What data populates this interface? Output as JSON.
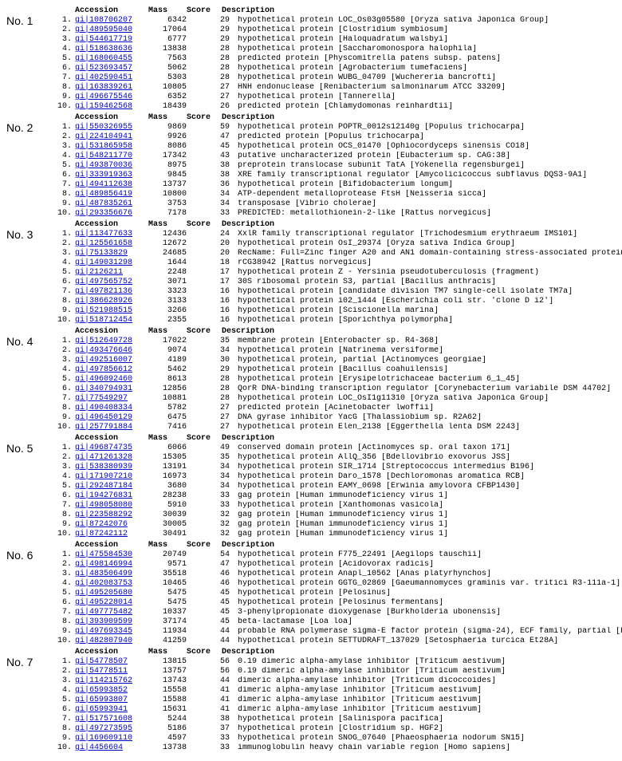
{
  "headers": {
    "accession": "Accession",
    "mass": "Mass",
    "score": "Score",
    "description": "Description"
  },
  "sections": [
    {
      "label": "No. 1",
      "rows": [
        {
          "idx": "1.",
          "acc": "gi|108706207",
          "mass": "6342",
          "score": "29",
          "desc": "hypothetical protein LOC_Os03g05580 [Oryza sativa Japonica Group]"
        },
        {
          "idx": "2.",
          "acc": "gi|489595040",
          "mass": "17064",
          "score": "29",
          "desc": "hypothetical protein [Clostridium symbiosum]"
        },
        {
          "idx": "3.",
          "acc": "gi|544617719",
          "mass": "6777",
          "score": "29",
          "desc": "hypothetical protein [Haloquadratum walsbyi]"
        },
        {
          "idx": "4.",
          "acc": "gi|518638636",
          "mass": "13838",
          "score": "28",
          "desc": "hypothetical protein [Saccharomonospora halophila]"
        },
        {
          "idx": "5.",
          "acc": "gi|168060455",
          "mass": "7563",
          "score": "28",
          "desc": "predicted protein [Physcomitrella patens subsp. patens]"
        },
        {
          "idx": "6.",
          "acc": "gi|523693457",
          "mass": "5062",
          "score": "28",
          "desc": "hypothetical protein [Agrobacterium tumefaciens]"
        },
        {
          "idx": "7.",
          "acc": "gi|402590451",
          "mass": "5303",
          "score": "28",
          "desc": "hypothetical protein WUBG_04709 [Wuchereria bancrofti]"
        },
        {
          "idx": "8.",
          "acc": "gi|163839261",
          "mass": "10805",
          "score": "27",
          "desc": "HNH endonuclease [Renibacterium salmoninarum ATCC 33209]"
        },
        {
          "idx": "9.",
          "acc": "gi|496675546",
          "mass": "6352",
          "score": "27",
          "desc": "hypothetical protein [Tannerella]"
        },
        {
          "idx": "10.",
          "acc": "gi|159462568",
          "mass": "18439",
          "score": "26",
          "desc": "predicted protein [Chlamydomonas reinhardtii]"
        }
      ]
    },
    {
      "label": "No. 2",
      "rows": [
        {
          "idx": "1.",
          "acc": "gi|550326955",
          "mass": "9869",
          "score": "59",
          "desc": "hypothetical protein POPTR_0012s12140g [Populus trichocarpa]"
        },
        {
          "idx": "2.",
          "acc": "gi|224104941",
          "mass": "9926",
          "score": "47",
          "desc": "predicted protein [Populus trichocarpa]"
        },
        {
          "idx": "3.",
          "acc": "gi|531865958",
          "mass": "8086",
          "score": "45",
          "desc": "hypothetical protein OCS_01470 [Ophiocordyceps sinensis CO18]"
        },
        {
          "idx": "4.",
          "acc": "gi|548211770",
          "mass": "17342",
          "score": "43",
          "desc": "putative uncharacterized protein [Eubacterium sp. CAG:38]"
        },
        {
          "idx": "5.",
          "acc": "gi|493870036",
          "mass": "8975",
          "score": "38",
          "desc": "preprotein translocase subunit TatA [Yokenella regensburgei]"
        },
        {
          "idx": "6.",
          "acc": "gi|333919363",
          "mass": "9845",
          "score": "38",
          "desc": "XRE family transcriptional regulator [Amycolicicoccus subflavus DQS3-9A1]"
        },
        {
          "idx": "7.",
          "acc": "gi|494112638",
          "mass": "13737",
          "score": "36",
          "desc": "hypothetical protein [Bifidobacterium longum]"
        },
        {
          "idx": "8.",
          "acc": "gi|489856419",
          "mass": "10800",
          "score": "34",
          "desc": "ATP-dependent metalloprotease FtsH [Neisseria sicca]"
        },
        {
          "idx": "9.",
          "acc": "gi|487835261",
          "mass": "3753",
          "score": "34",
          "desc": "transposase [Vibrio cholerae]"
        },
        {
          "idx": "10.",
          "acc": "gi|293356676",
          "mass": "7178",
          "score": "33",
          "desc": "PREDICTED: metallothionein-2-like [Rattus norvegicus]"
        }
      ]
    },
    {
      "label": "No. 3",
      "rows": [
        {
          "idx": "1.",
          "acc": "gi|113477633",
          "mass": "12436",
          "score": "24",
          "desc": "XxlR family transcriptional regulator [Trichodesmium erythraeum IMS101]"
        },
        {
          "idx": "2.",
          "acc": "gi|125561658",
          "mass": "12672",
          "score": "20",
          "desc": "hypothetical protein OsI_29374 [Oryza sativa Indica Group]"
        },
        {
          "idx": "3.",
          "acc": "gi|75133829",
          "mass": "24685",
          "score": "20",
          "desc": "RecName: Full=Zinc finger A20 and AN1 domain-containing stress-associated protein 12; Short=OsSAP12"
        },
        {
          "idx": "4.",
          "acc": "gi|149031298",
          "mass": "1644",
          "score": "18",
          "desc": "rCG38942 [Rattus norvegicus]"
        },
        {
          "idx": "5.",
          "acc": "gi|2126211",
          "mass": "2248",
          "score": "17",
          "desc": "hypothetical protein Z - Yersinia pseudotuberculosis (fragment)"
        },
        {
          "idx": "6.",
          "acc": "gi|497565752",
          "mass": "3071",
          "score": "17",
          "desc": "30S ribosomal protein S3, partial [Bacillus anthracis]"
        },
        {
          "idx": "7.",
          "acc": "gi|497821136",
          "mass": "3323",
          "score": "16",
          "desc": "hypothetical protein [candidate division TM7 single-cell isolate TM7a]"
        },
        {
          "idx": "8.",
          "acc": "gi|386628926",
          "mass": "3133",
          "score": "16",
          "desc": "hypothetical protein i02_1444 [Escherichia coli str. 'clone D i2']"
        },
        {
          "idx": "9.",
          "acc": "gi|521988515",
          "mass": "3266",
          "score": "16",
          "desc": "hypothetical protein [Sciscionella marina]"
        },
        {
          "idx": "10.",
          "acc": "gi|518712454",
          "mass": "2355",
          "score": "16",
          "desc": "hypothetical protein [Sporichthya polymorpha]"
        }
      ]
    },
    {
      "label": "No. 4",
      "rows": [
        {
          "idx": "1.",
          "acc": "gi|512649728",
          "mass": "17022",
          "score": "35",
          "desc": "membrane protein [Enterobacter sp. R4-368]"
        },
        {
          "idx": "2.",
          "acc": "gi|493476646",
          "mass": "9074",
          "score": "34",
          "desc": "hypothetical protein [Natrinema versiforme]"
        },
        {
          "idx": "3.",
          "acc": "gi|492516007",
          "mass": "4189",
          "score": "30",
          "desc": "hypothetical protein, partial [Actinomyces georgiae]"
        },
        {
          "idx": "4.",
          "acc": "gi|497856612",
          "mass": "5462",
          "score": "29",
          "desc": "hypothetical protein [Bacillus coahuilensis]"
        },
        {
          "idx": "5.",
          "acc": "gi|496092460",
          "mass": "8613",
          "score": "28",
          "desc": "hypothetical protein [Erysipelotrichaceae bacterium 6_1_45]"
        },
        {
          "idx": "6.",
          "acc": "gi|340794931",
          "mass": "12856",
          "score": "28",
          "desc": "QorR DNA-binding transcription regulator [Corynebacterium variabile DSM 44702]"
        },
        {
          "idx": "7.",
          "acc": "gi|77549297",
          "mass": "10881",
          "score": "28",
          "desc": "hypothetical protein LOC_OsI1g11310 [Oryza sativa Japonica Group]"
        },
        {
          "idx": "8.",
          "acc": "gi|490408334",
          "mass": "5782",
          "score": "27",
          "desc": "predicted protein [Acinetobacter lwoffii]"
        },
        {
          "idx": "9.",
          "acc": "gi|496450129",
          "mass": "6475",
          "score": "27",
          "desc": "DNA gyrase inhibitor YacG [Thalassiobium sp. R2A62]"
        },
        {
          "idx": "10.",
          "acc": "gi|257791884",
          "mass": "7416",
          "score": "27",
          "desc": "hypothetical protein Elen_2138 [Eggerthella lenta DSM 2243]"
        }
      ]
    },
    {
      "label": "No. 5",
      "rows": [
        {
          "idx": "1.",
          "acc": "gi|496874735",
          "mass": "6066",
          "score": "49",
          "desc": "conserved domain protein [Actinomyces sp. oral taxon 171]"
        },
        {
          "idx": "2.",
          "acc": "gi|471261328",
          "mass": "15305",
          "score": "35",
          "desc": "hypothetical protein AllQ_356 [Bdellovibrio exovorus JSS]"
        },
        {
          "idx": "3.",
          "acc": "gi|538380939",
          "mass": "13191",
          "score": "34",
          "desc": "hypothetical protein SIR_1714 [Streptococcus intermedius B196]"
        },
        {
          "idx": "4.",
          "acc": "gi|171907210",
          "mass": "16973",
          "score": "34",
          "desc": "hypothetical protein Daro_1578 [Dechloromonas aromatica RCB]"
        },
        {
          "idx": "5.",
          "acc": "gi|292487184",
          "mass": "3680",
          "score": "34",
          "desc": "hypothetical protein EAMY_0698 [Erwinia amylovora CFBP1430]"
        },
        {
          "idx": "6.",
          "acc": "gi|194276831",
          "mass": "28238",
          "score": "33",
          "desc": "gag protein [Human immunodeficiency virus 1]"
        },
        {
          "idx": "7.",
          "acc": "gi|498058080",
          "mass": "5910",
          "score": "33",
          "desc": "hypothetical protein [Xanthomonas vasicola]"
        },
        {
          "idx": "8.",
          "acc": "gi|223588292",
          "mass": "30039",
          "score": "32",
          "desc": "gag protein [Human immunodeficiency virus 1]"
        },
        {
          "idx": "9.",
          "acc": "gi|87242076",
          "mass": "30005",
          "score": "32",
          "desc": "gag protein [Human immunodeficiency virus 1]"
        },
        {
          "idx": "10.",
          "acc": "gi|87242112",
          "mass": "30491",
          "score": "32",
          "desc": "gag protein [Human immunodeficiency virus 1]"
        }
      ]
    },
    {
      "label": "No. 6",
      "rows": [
        {
          "idx": "1.",
          "acc": "gi|475584530",
          "mass": "20749",
          "score": "54",
          "desc": "hypothetical protein F775_22491 [Aegilops tauschii]"
        },
        {
          "idx": "2.",
          "acc": "gi|498146994",
          "mass": "9571",
          "score": "47",
          "desc": "hypothetical protein [Acidovorax radicis]"
        },
        {
          "idx": "3.",
          "acc": "gi|483506499",
          "mass": "35518",
          "score": "46",
          "desc": "hypothetical protein Anapl_10562 [Anas platyrhynchos]"
        },
        {
          "idx": "4.",
          "acc": "gi|402083753",
          "mass": "10465",
          "score": "46",
          "desc": "hypothetical protein GGTG_02869 [Gaeumannomyces graminis var. tritici R3-111a-1]"
        },
        {
          "idx": "5.",
          "acc": "gi|495205680",
          "mass": "5475",
          "score": "45",
          "desc": "hypothetical protein [Pelosinus]"
        },
        {
          "idx": "6.",
          "acc": "gi|495228014",
          "mass": "5475",
          "score": "45",
          "desc": "hypothetical protein [Pelosinus fermentans]"
        },
        {
          "idx": "7.",
          "acc": "gi|497775482",
          "mass": "10337",
          "score": "45",
          "desc": "3-phenylpropionate dioxygenase [Burkholderia ubonensis]"
        },
        {
          "idx": "8.",
          "acc": "gi|393909599",
          "mass": "37174",
          "score": "45",
          "desc": "beta-lactamase [Loa loa]"
        },
        {
          "idx": "9.",
          "acc": "gi|497693345",
          "mass": "11934",
          "score": "44",
          "desc": "probable RNA polymerase sigma-E factor protein (sigma-24), ECF family, partial [Rhizobium etli]"
        },
        {
          "idx": "10.",
          "acc": "gi|482807940",
          "mass": "41259",
          "score": "44",
          "desc": "hypothetical protein SETTUDRAFT_137029 [Setosphaeria turcica Et28A]"
        }
      ]
    },
    {
      "label": "No. 7",
      "rows": [
        {
          "idx": "1.",
          "acc": "gi|54778507",
          "mass": "13815",
          "score": "56",
          "desc": "0.19 dimeric alpha-amylase inhibitor [Triticum aestivum]"
        },
        {
          "idx": "2.",
          "acc": "gi|54778511",
          "mass": "13757",
          "score": "56",
          "desc": "0.19 dimeric alpha-amylase inhibitor [Triticum aestivum]"
        },
        {
          "idx": "3.",
          "acc": "gi|114215762",
          "mass": "13743",
          "score": "44",
          "desc": "dimeric alpha-amylase inhibitor [Triticum dicoccoides]"
        },
        {
          "idx": "4.",
          "acc": "gi|65993852",
          "mass": "15558",
          "score": "41",
          "desc": "dimeric alpha-amylase inhibitor [Triticum aestivum]"
        },
        {
          "idx": "5.",
          "acc": "gi|65993807",
          "mass": "15588",
          "score": "41",
          "desc": "dimeric alpha-amylase inhibitor [Triticum aestivum]"
        },
        {
          "idx": "6.",
          "acc": "gi|65993941",
          "mass": "15631",
          "score": "41",
          "desc": "dimeric alpha-amylase inhibitor [Triticum aestivum]"
        },
        {
          "idx": "7.",
          "acc": "gi|517571608",
          "mass": "5244",
          "score": "38",
          "desc": "hypothetical protein [Salinispora pacifica]"
        },
        {
          "idx": "8.",
          "acc": "gi|497273595",
          "mass": "5186",
          "score": "37",
          "desc": "hypothetical protein [Clostridium sp. HGF2]"
        },
        {
          "idx": "9.",
          "acc": "gi|169609110",
          "mass": "4597",
          "score": "33",
          "desc": "hypothetical protein SNOG_07640 [Phaeosphaeria nodorum SN15]"
        },
        {
          "idx": "10.",
          "acc": "gi|4456604",
          "mass": "13738",
          "score": "33",
          "desc": "immunoglobulin heavy chain variable region [Homo sapiens]"
        }
      ]
    }
  ]
}
